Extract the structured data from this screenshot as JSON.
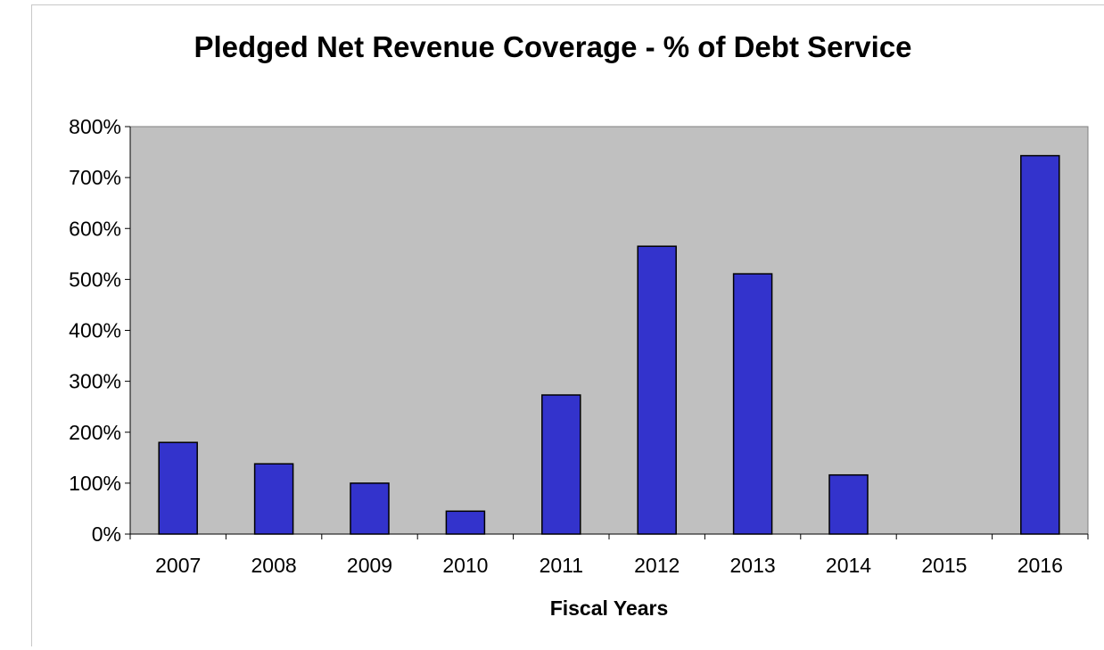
{
  "chart_data": {
    "type": "bar",
    "title": "Pledged Net Revenue Coverage - % of Debt Service",
    "xlabel": "Fiscal Years",
    "ylabel": "",
    "categories": [
      "2007",
      "2008",
      "2009",
      "2010",
      "2011",
      "2012",
      "2013",
      "2014",
      "2015",
      "2016"
    ],
    "values": [
      180,
      138,
      100,
      45,
      273,
      565,
      511,
      116,
      0,
      743
    ],
    "value_unit": "%",
    "ylim": [
      0,
      800
    ],
    "yticks": [
      0,
      100,
      200,
      300,
      400,
      500,
      600,
      700,
      800
    ],
    "ytick_labels": [
      "0%",
      "100%",
      "200%",
      "300%",
      "400%",
      "500%",
      "600%",
      "700%",
      "800%"
    ],
    "grid": false,
    "legend": "none",
    "colors": {
      "bar_fill": "#3333cc",
      "bar_stroke": "#000000",
      "plot_background": "#c0c0c0",
      "axis": "#000000"
    }
  }
}
